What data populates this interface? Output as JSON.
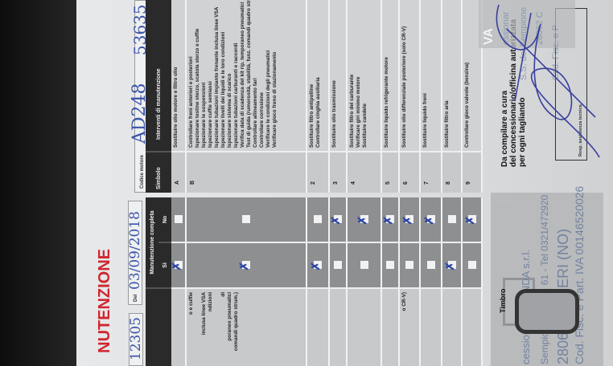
{
  "left_page": {
    "title": "NUTENZIONE",
    "code_value": "12305",
    "date_label": "Del",
    "date_value": "03/09/2018",
    "header": "Manutenzione completa",
    "col_yes": "Sì",
    "col_no": "No",
    "rows": [
      {
        "text": "",
        "yes": true,
        "no": false
      },
      {
        "text": "o e cuffie\n\ninclusa linee VSA\nndizioni\n\ndi\nporaneo pneumatici\ncomandi quadro strum.)",
        "yes": true,
        "no": false
      },
      {
        "text": "",
        "yes": true,
        "no": false
      },
      {
        "text": "",
        "yes": false,
        "no": true
      },
      {
        "text": "",
        "yes": false,
        "no": true
      },
      {
        "text": "",
        "yes": false,
        "no": true
      },
      {
        "text": "o CR-V)",
        "yes": false,
        "no": true
      },
      {
        "text": "",
        "yes": false,
        "no": true
      },
      {
        "text": "",
        "yes": true,
        "no": false
      },
      {
        "text": "",
        "yes": false,
        "no": true
      }
    ],
    "stamp_label": "Timbro",
    "stamp_lines": [
      "cessionaria HONDA s.r.l.",
      "Sempione 32 Km. 61 - Tel 0321/472920",
      "28062 CAMERI (NO)",
      "Cod. Fisc. e Part. IVA 00146520026"
    ]
  },
  "right_page": {
    "engine_code_label": "Codice motore",
    "engine_code_value": "AD248",
    "engine_number_value": "53635",
    "col_symbol": "Simbolo",
    "col_interventions": "Interventi di manutenzione",
    "rows": [
      {
        "symbol": "A",
        "text": "Sostituire olio motore e filtro olio"
      },
      {
        "symbol": "B",
        "text": "Controllare freni anteriori e posteriori\nIspezionare testine sterzo, scatola sterzo e cuffie\nIspezionare le sospensioni\nIspezionare cuffie semiassi\nIspezionare tubazioni impianto frenante inclusa linee VSA\nIspezionare livelli dei liquidi e le loro condizioni\nIspezionare sistema di scarico\nIspezionare tubazioni carburanti e raccordi\nVerifica data di scadenza del kit rip. temporaneo pneumatici\nTest di guida (rumorosità, stabilità, funz. comandi quadro strum.)\nControllare allineamento fari\nControllare corrosione\nVerificare le condizioni degli pneumatici\nVerificare gioco freno di stazionamento"
      },
      {
        "symbol": "2",
        "text": "Sostituire filtro antipolline\nControllare cinghia ausiliaria"
      },
      {
        "symbol": "3",
        "text": "Sostituire olio trasmissione"
      },
      {
        "symbol": "4",
        "text": "Sostituire filtro del carburante\nVerificare giri minimo motore\nSostituire candele"
      },
      {
        "symbol": "5",
        "text": "Sostituire liquido refrigerante motore"
      },
      {
        "symbol": "6",
        "text": "Sostituire olio differenziale posteriore (solo CR-V)"
      },
      {
        "symbol": "7",
        "text": "Sostituire liquido freni"
      },
      {
        "symbol": "8",
        "text": "Sostituire filtro aria"
      },
      {
        "symbol": "9",
        "text": "Controllare gioco valvole (benzina)"
      }
    ],
    "note": "Da compilare a cura\ndel concessionario/officina autorizzata\nper ogni tagliando",
    "signature_label": "Resp. assistenza tecnica",
    "stamp_lines": [
      "VA",
      "essionar",
      "S.S. del Sempione",
      "28062 C",
      "Cod. Fisc. e P"
    ]
  },
  "colors": {
    "title": "#d0262e",
    "ink": "#3b52a8",
    "header": "#2a2a2a"
  }
}
